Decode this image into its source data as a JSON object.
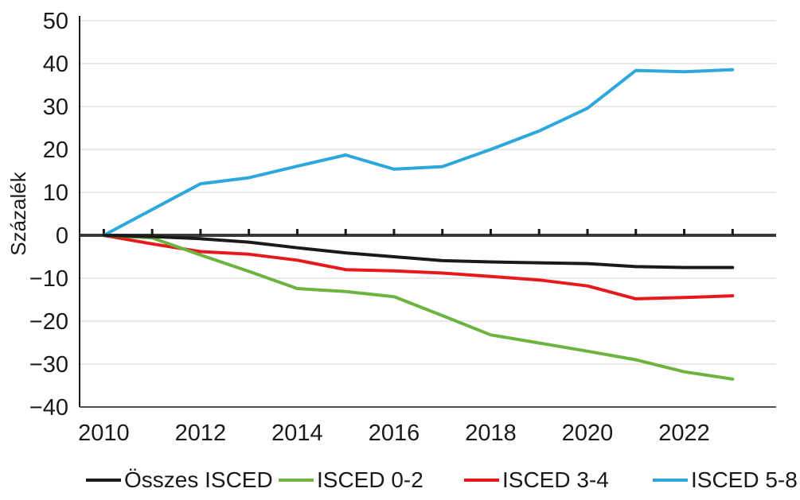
{
  "chart_data": {
    "type": "line",
    "title": "",
    "xlabel": "",
    "ylabel": "Százalék",
    "xlim": [
      2009.5,
      2023.9
    ],
    "ylim": [
      -40,
      50
    ],
    "x_ticks": [
      2010,
      2012,
      2014,
      2016,
      2018,
      2020,
      2022
    ],
    "y_ticks": [
      50,
      40,
      30,
      20,
      10,
      0,
      -10,
      -20,
      -30,
      -40
    ],
    "y_tick_labels": [
      "50",
      "40",
      "30",
      "20",
      "10",
      "0",
      "−10",
      "−20",
      "−30",
      "−40"
    ],
    "grid": "horizontal",
    "legend_position": "bottom",
    "x": [
      2010,
      2011,
      2012,
      2013,
      2014,
      2015,
      2016,
      2017,
      2018,
      2019,
      2020,
      2021,
      2022,
      2023
    ],
    "series": [
      {
        "name": "Összes ISCED",
        "color": "#1a1a1a",
        "values": [
          0,
          -0.3,
          -0.8,
          -1.6,
          -2.9,
          -4.1,
          -5.0,
          -5.9,
          -6.2,
          -6.4,
          -6.6,
          -7.3,
          -7.5,
          -7.5
        ]
      },
      {
        "name": "ISCED 0-2",
        "color": "#6db33f",
        "values": [
          0,
          -0.6,
          -4.6,
          -8.4,
          -12.4,
          -13.1,
          -14.3,
          -18.7,
          -23.2,
          -25.1,
          -27.0,
          -29.0,
          -31.8,
          -33.5
        ]
      },
      {
        "name": "ISCED 3-4",
        "color": "#e8191c",
        "values": [
          0,
          -2.0,
          -3.8,
          -4.4,
          -5.8,
          -8.0,
          -8.3,
          -8.8,
          -9.6,
          -10.4,
          -11.8,
          -14.8,
          -14.5,
          -14.1
        ]
      },
      {
        "name": "ISCED 5-8",
        "color": "#2ea7dd",
        "values": [
          0,
          6.0,
          12.0,
          13.4,
          16.1,
          18.7,
          15.4,
          16.0,
          20.0,
          24.3,
          29.6,
          38.4,
          38.1,
          38.6
        ]
      }
    ]
  }
}
